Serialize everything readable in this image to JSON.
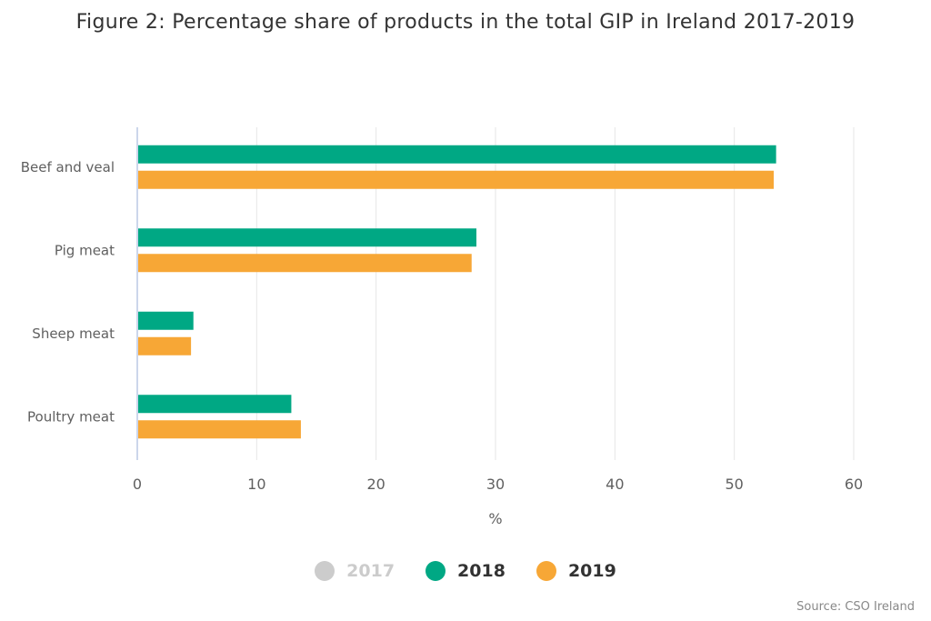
{
  "chart_data": {
    "type": "bar",
    "orientation": "horizontal",
    "title": "Figure 2: Percentage share of products in the total GIP in Ireland 2017-2019",
    "categories": [
      "Beef and veal",
      "Pig meat",
      "Sheep meat",
      "Poultry meat"
    ],
    "series": [
      {
        "name": "2017",
        "color": "#cccccc",
        "visible": false,
        "values": []
      },
      {
        "name": "2018",
        "color": "#00a884",
        "visible": true,
        "values": [
          53.5,
          28.4,
          4.7,
          12.9
        ]
      },
      {
        "name": "2019",
        "color": "#f7a736",
        "visible": true,
        "values": [
          53.3,
          28.0,
          4.5,
          13.7
        ]
      }
    ],
    "xlabel": "%",
    "ylabel": "",
    "xlim": [
      0,
      60
    ],
    "xticks": [
      0,
      10,
      20,
      30,
      40,
      50,
      60
    ],
    "grid": true,
    "legend_position": "bottom-center",
    "source": "Source: CSO Ireland"
  },
  "colors": {
    "hidden_series_text": "#cccccc",
    "visible_series_text": "#333333",
    "grid": "#e6e6e6",
    "axis_line": "#ccd6eb"
  }
}
